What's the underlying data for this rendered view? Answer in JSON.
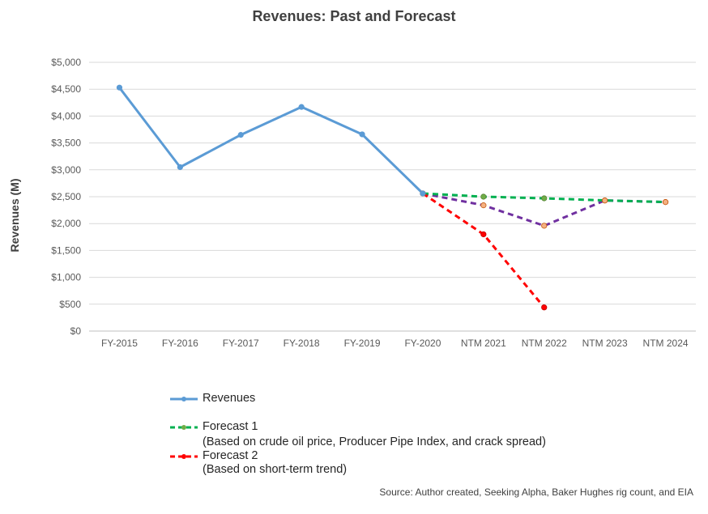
{
  "chart_data": {
    "type": "line",
    "title": "Revenues: Past and Forecast",
    "ylabel": "Revenues (M)",
    "xlabel": "",
    "ylim": [
      0,
      5000
    ],
    "y_ticks": [
      "$0",
      "$500",
      "$1,000",
      "$1,500",
      "$2,000",
      "$2,500",
      "$3,000",
      "$3,500",
      "$4,000",
      "$4,500",
      "$5,000"
    ],
    "categories": [
      "FY-2015",
      "FY-2016",
      "FY-2017",
      "FY-2018",
      "FY-2019",
      "FY-2020",
      "NTM 2021",
      "NTM 2022",
      "NTM 2023",
      "NTM 2024"
    ],
    "grid": true,
    "legend_position": "bottom",
    "series": [
      {
        "name": "Revenues",
        "color": "#5b9bd5",
        "style": "solid",
        "values": [
          4530,
          3050,
          3650,
          4170,
          3660,
          2560,
          null,
          null,
          null,
          null
        ]
      },
      {
        "name": "Forecast 1",
        "note": "(Based on crude oil price, Producer Pipe Index, and crack spread)",
        "color": "#00b050",
        "style": "dashed",
        "values": [
          null,
          null,
          null,
          null,
          null,
          2560,
          2500,
          2470,
          2430,
          2400
        ]
      },
      {
        "name": "Forecast 2",
        "note": "(Based on short-term trend)",
        "color": "#ff0000",
        "style": "dashed",
        "values": [
          null,
          null,
          null,
          null,
          null,
          2560,
          1800,
          440,
          null,
          null
        ]
      },
      {
        "color": "#7030a0",
        "style": "dashed",
        "values": [
          null,
          null,
          null,
          null,
          null,
          2560,
          2340,
          1960,
          2430,
          2400
        ]
      }
    ],
    "marker_color": "#f4b183",
    "source": "Source: Author created, Seeking Alpha, Baker Hughes rig count, and EIA"
  }
}
